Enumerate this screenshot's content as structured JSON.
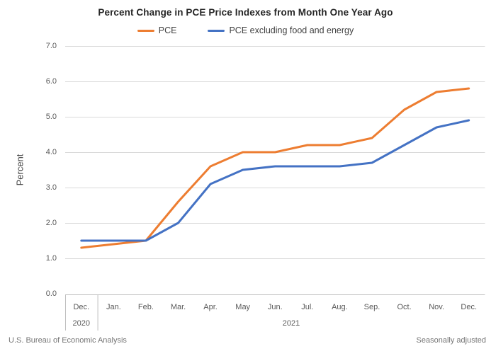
{
  "chart_data": {
    "type": "line",
    "title": "Percent Change in PCE Price Indexes from Month One Year Ago",
    "ylabel": "Percent",
    "ylim": [
      0.0,
      7.0
    ],
    "ytick_step": 1.0,
    "ytick_labels": [
      "0.0",
      "1.0",
      "2.0",
      "3.0",
      "4.0",
      "5.0",
      "6.0",
      "7.0"
    ],
    "grid": true,
    "legend_position": "top",
    "categories": [
      "Dec.",
      "Jan.",
      "Feb.",
      "Mar.",
      "Apr.",
      "May",
      "Jun.",
      "Jul.",
      "Aug.",
      "Sep.",
      "Oct.",
      "Nov.",
      "Dec."
    ],
    "year_groups": [
      {
        "label": "2020",
        "start": 0,
        "end": 0
      },
      {
        "label": "2021",
        "start": 1,
        "end": 12
      }
    ],
    "series": [
      {
        "name": "PCE",
        "color": "#ED7D31",
        "values": [
          1.3,
          1.4,
          1.5,
          2.6,
          3.6,
          4.0,
          4.0,
          4.2,
          4.2,
          4.4,
          5.2,
          5.7,
          5.8
        ]
      },
      {
        "name": "PCE excluding food and energy",
        "color": "#4472C4",
        "values": [
          1.5,
          1.5,
          1.5,
          2.0,
          3.1,
          3.5,
          3.6,
          3.6,
          3.6,
          3.7,
          4.2,
          4.7,
          4.9
        ]
      }
    ]
  },
  "footer": {
    "left": "U.S. Bureau of Economic Analysis",
    "right": "Seasonally adjusted"
  }
}
